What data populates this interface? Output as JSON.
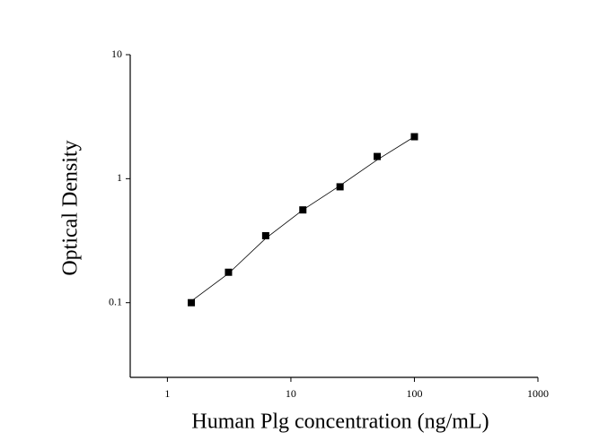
{
  "chart_data": {
    "type": "scatter",
    "xlabel": "Human Plg concentration (ng/mL)",
    "ylabel": "Optical Density",
    "xscale": "log",
    "yscale": "log",
    "xlim": [
      0.5,
      1000
    ],
    "ylim": [
      0.025,
      10
    ],
    "xticks": [
      1,
      10,
      100,
      1000
    ],
    "yticks": [
      0.1,
      1,
      10
    ],
    "series": [
      {
        "type": "scatter",
        "color": "#000000",
        "x": [
          1.5625,
          3.125,
          6.25,
          12.5,
          25,
          50,
          100
        ],
        "values": [
          0.1,
          0.176,
          0.347,
          0.56,
          0.86,
          1.51,
          2.18
        ]
      },
      {
        "type": "line",
        "color": "#000000",
        "x": [
          1.5625,
          3.125,
          6.25,
          12.5,
          25,
          50,
          100
        ],
        "values": [
          0.103,
          0.172,
          0.33,
          0.56,
          0.88,
          1.42,
          2.18
        ]
      }
    ]
  }
}
